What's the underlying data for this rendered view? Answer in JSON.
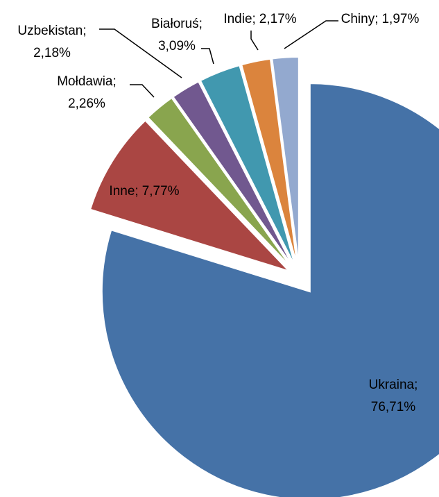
{
  "chart_data": {
    "type": "pie",
    "categories": [
      "Ukraina;",
      "Inne;",
      "Mołdawia;",
      "Uzbekistan;",
      "Białoruś;",
      "Indie;",
      "Chiny;"
    ],
    "values": [
      76.71,
      7.77,
      2.26,
      2.18,
      3.09,
      2.17,
      1.97
    ],
    "value_labels": [
      "76,71%",
      "7,77%",
      "2,26%",
      "2,18%",
      "3,09%",
      "2,17%",
      "1,97%"
    ],
    "colors": [
      "#4572a7",
      "#aa4643",
      "#89a54e",
      "#71588f",
      "#4198af",
      "#db843d",
      "#93a9cf"
    ]
  }
}
